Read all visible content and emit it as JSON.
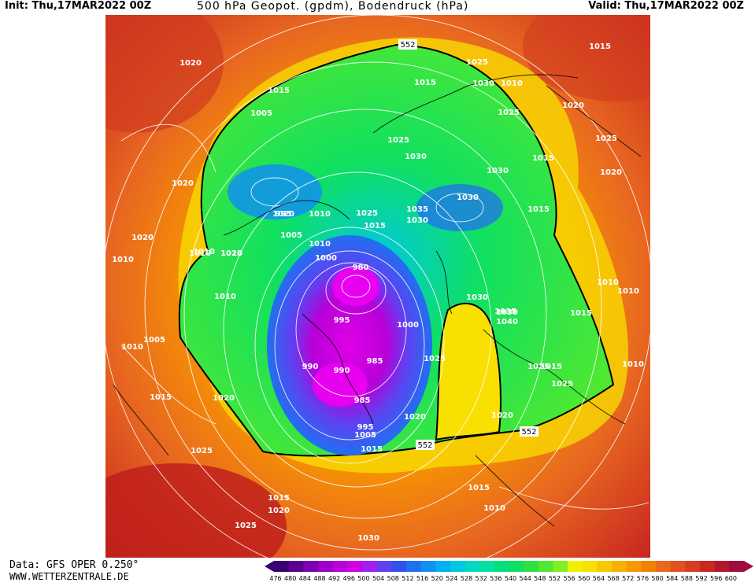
{
  "header": {
    "init": "Init: Thu,17MAR2022 00Z",
    "title": "500 hPa Geopot. (gpdm), Bodendruck (hPa)",
    "valid": "Valid: Thu,17MAR2022 00Z"
  },
  "footer": {
    "source": "Data: GFS OPER 0.250°",
    "site": "WWW.WETTERZENTRALE.DE"
  },
  "legend": {
    "values": [
      "476",
      "480",
      "484",
      "488",
      "492",
      "496",
      "500",
      "504",
      "508",
      "512",
      "516",
      "520",
      "524",
      "528",
      "532",
      "536",
      "540",
      "544",
      "548",
      "552",
      "556",
      "560",
      "564",
      "568",
      "572",
      "576",
      "580",
      "584",
      "588",
      "592",
      "596",
      "600"
    ],
    "colors": [
      "#3a0070",
      "#5a0090",
      "#7a00b0",
      "#9a00c8",
      "#b800d8",
      "#d000e0",
      "#a020f0",
      "#6040f0",
      "#3050f0",
      "#2070f0",
      "#1090f0",
      "#00b0f0",
      "#00c8e0",
      "#00d8c0",
      "#00e0a0",
      "#00e080",
      "#10e060",
      "#30e040",
      "#50e830",
      "#80f020",
      "#f0f000",
      "#f8e000",
      "#f8c800",
      "#f8b000",
      "#f89800",
      "#f08000",
      "#e86820",
      "#e05020",
      "#d83c20",
      "#c82820",
      "#b01830",
      "#a00c40"
    ]
  },
  "map": {
    "contour_552_label": "552",
    "isobar_labels": [
      {
        "id": "l1",
        "text": "1020"
      },
      {
        "id": "l2",
        "text": "1015"
      },
      {
        "id": "l3",
        "text": "1005"
      },
      {
        "id": "l4",
        "text": "1020"
      },
      {
        "id": "l5",
        "text": "995"
      },
      {
        "id": "l6",
        "text": "1010"
      },
      {
        "id": "l7",
        "text": "1005"
      },
      {
        "id": "l8",
        "text": "1020"
      },
      {
        "id": "l9",
        "text": "1010"
      },
      {
        "id": "l10",
        "text": "1015"
      },
      {
        "id": "l11",
        "text": "1010"
      },
      {
        "id": "l12",
        "text": "1005"
      },
      {
        "id": "l13",
        "text": "1010"
      },
      {
        "id": "l14",
        "text": "1015"
      },
      {
        "id": "l15",
        "text": "1020"
      },
      {
        "id": "l16",
        "text": "1025"
      },
      {
        "id": "l17",
        "text": "1015"
      },
      {
        "id": "l18",
        "text": "1020"
      },
      {
        "id": "l19",
        "text": "1025"
      },
      {
        "id": "l20",
        "text": "1030"
      },
      {
        "id": "l21",
        "text": "1015"
      },
      {
        "id": "l22",
        "text": "1025"
      },
      {
        "id": "l23",
        "text": "1030"
      },
      {
        "id": "l24",
        "text": "1025"
      },
      {
        "id": "l25",
        "text": "1015"
      },
      {
        "id": "l26",
        "text": "1035"
      },
      {
        "id": "l27",
        "text": "1030"
      },
      {
        "id": "l28",
        "text": "1030"
      },
      {
        "id": "l29",
        "text": "1030"
      },
      {
        "id": "l30",
        "text": "1030"
      },
      {
        "id": "l31",
        "text": "1010"
      },
      {
        "id": "l32",
        "text": "1000"
      },
      {
        "id": "l33",
        "text": "980"
      },
      {
        "id": "l34",
        "text": "995"
      },
      {
        "id": "l35",
        "text": "1000"
      },
      {
        "id": "l36",
        "text": "990"
      },
      {
        "id": "l37",
        "text": "990"
      },
      {
        "id": "l38",
        "text": "985"
      },
      {
        "id": "l39",
        "text": "985"
      },
      {
        "id": "l40",
        "text": "995"
      },
      {
        "id": "l41",
        "text": "1005"
      },
      {
        "id": "l42",
        "text": "1015"
      },
      {
        "id": "l43",
        "text": "1020"
      },
      {
        "id": "l44",
        "text": "1025"
      },
      {
        "id": "l45",
        "text": "1030"
      },
      {
        "id": "l46",
        "text": "1035"
      },
      {
        "id": "l47",
        "text": "1040"
      },
      {
        "id": "l48",
        "text": "1025"
      },
      {
        "id": "l49",
        "text": "1025"
      },
      {
        "id": "l50",
        "text": "1020"
      },
      {
        "id": "l51",
        "text": "1010"
      },
      {
        "id": "l52",
        "text": "1015"
      },
      {
        "id": "l53",
        "text": "1010"
      },
      {
        "id": "l54",
        "text": "1015"
      },
      {
        "id": "l55",
        "text": "1010"
      },
      {
        "id": "l56",
        "text": "1025"
      },
      {
        "id": "l57",
        "text": "1020"
      },
      {
        "id": "l58",
        "text": "1010"
      },
      {
        "id": "l59",
        "text": "1015"
      },
      {
        "id": "l60",
        "text": "1020"
      },
      {
        "id": "l61",
        "text": "1015"
      },
      {
        "id": "l62",
        "text": "1010"
      },
      {
        "id": "l63",
        "text": "1025"
      },
      {
        "id": "l64",
        "text": "1030"
      },
      {
        "id": "l65",
        "text": "1025"
      },
      {
        "id": "l66",
        "text": "1015"
      },
      {
        "id": "l67",
        "text": "1020"
      },
      {
        "id": "l68",
        "text": "1010"
      },
      {
        "id": "l69",
        "text": "1015"
      },
      {
        "id": "l70",
        "text": "1010"
      },
      {
        "id": "l71",
        "text": "1020"
      }
    ]
  }
}
